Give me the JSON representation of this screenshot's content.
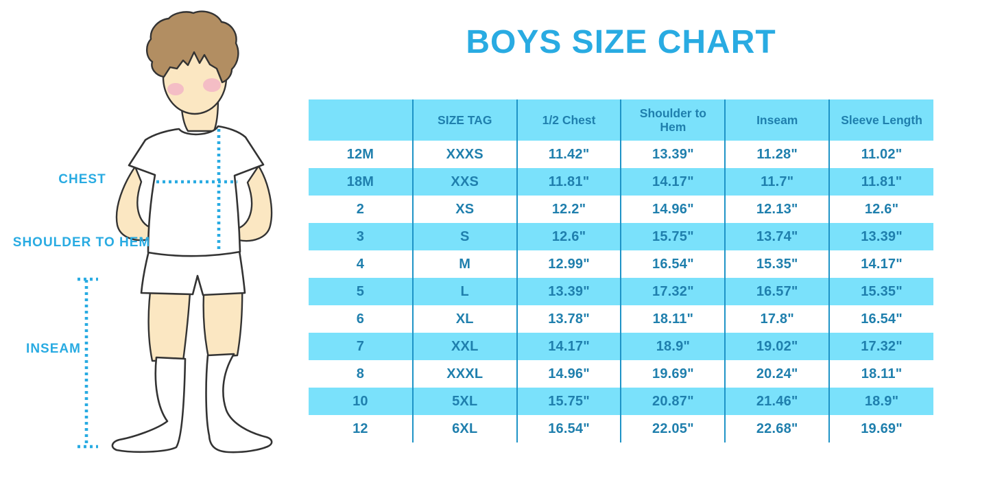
{
  "title": "BOYS SIZE CHART",
  "colors": {
    "accent": "#29ABE2",
    "table_fill": "#7AE1FB",
    "table_text": "#1F7FAD",
    "table_divider": "#1E93C6",
    "skin": "#FBE7C2",
    "hair": "#B28E62",
    "cheek": "#F2AFC5"
  },
  "figure": {
    "description": "Outlined illustration of a boy in a white t-shirt, shorts and knee socks with dotted measurement guide lines",
    "labels": {
      "chest": "CHEST",
      "shoulder_to_hem": "SHOULDER TO HEM",
      "inseam": "INSEAM"
    }
  },
  "chart_data": {
    "type": "table",
    "title": "BOYS SIZE CHART",
    "columns": [
      "",
      "SIZE TAG",
      "1/2 Chest",
      "Shoulder to Hem",
      "Inseam",
      "Sleeve Length"
    ],
    "rows": [
      [
        "12M",
        "XXXS",
        "11.42\"",
        "13.39\"",
        "11.28\"",
        "11.02\""
      ],
      [
        "18M",
        "XXS",
        "11.81\"",
        "14.17\"",
        "11.7\"",
        "11.81\""
      ],
      [
        "2",
        "XS",
        "12.2\"",
        "14.96\"",
        "12.13\"",
        "12.6\""
      ],
      [
        "3",
        "S",
        "12.6\"",
        "15.75\"",
        "13.74\"",
        "13.39\""
      ],
      [
        "4",
        "M",
        "12.99\"",
        "16.54\"",
        "15.35\"",
        "14.17\""
      ],
      [
        "5",
        "L",
        "13.39\"",
        "17.32\"",
        "16.57\"",
        "15.35\""
      ],
      [
        "6",
        "XL",
        "13.78\"",
        "18.11\"",
        "17.8\"",
        "16.54\""
      ],
      [
        "7",
        "XXL",
        "14.17\"",
        "18.9\"",
        "19.02\"",
        "17.32\""
      ],
      [
        "8",
        "XXXL",
        "14.96\"",
        "19.69\"",
        "20.24\"",
        "18.11\""
      ],
      [
        "10",
        "5XL",
        "15.75\"",
        "20.87\"",
        "21.46\"",
        "18.9\""
      ],
      [
        "12",
        "6XL",
        "16.54\"",
        "22.05\"",
        "22.68\"",
        "19.69\""
      ]
    ]
  }
}
